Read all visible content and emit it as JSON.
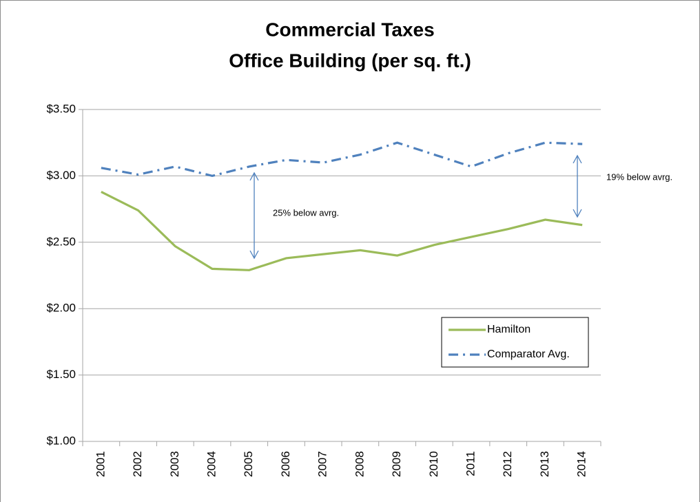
{
  "chart_data": {
    "type": "line",
    "title": "Commercial Taxes",
    "subtitle": "Office Building (per sq. ft.)",
    "categories": [
      "2001",
      "2002",
      "2003",
      "2004",
      "2005",
      "2006",
      "2007",
      "2008",
      "2009",
      "2010",
      "2011",
      "2012",
      "2013",
      "2014"
    ],
    "series": [
      {
        "name": "Hamilton",
        "color": "#9bbb59",
        "style": "solid",
        "values": [
          2.88,
          2.74,
          2.47,
          2.3,
          2.29,
          2.38,
          2.41,
          2.44,
          2.4,
          2.48,
          2.54,
          2.6,
          2.67,
          2.63
        ]
      },
      {
        "name": "Comparator Avg.",
        "color": "#4f81bd",
        "style": "dash-dot",
        "values": [
          3.06,
          3.01,
          3.07,
          3.0,
          3.07,
          3.12,
          3.1,
          3.16,
          3.25,
          3.16,
          3.07,
          3.17,
          3.25,
          3.24
        ]
      }
    ],
    "ylim": [
      1.0,
      3.5
    ],
    "yticks": [
      {
        "value": 1.0,
        "label": "$1.00"
      },
      {
        "value": 1.5,
        "label": "$1.50"
      },
      {
        "value": 2.0,
        "label": "$2.00"
      },
      {
        "value": 2.5,
        "label": "$2.50"
      },
      {
        "value": 3.0,
        "label": "$3.00"
      },
      {
        "value": 3.5,
        "label": "$3.50"
      }
    ],
    "grid": true,
    "legend": "lower-right",
    "annotations": [
      "25% below avrg.",
      "19% below avrg."
    ]
  }
}
